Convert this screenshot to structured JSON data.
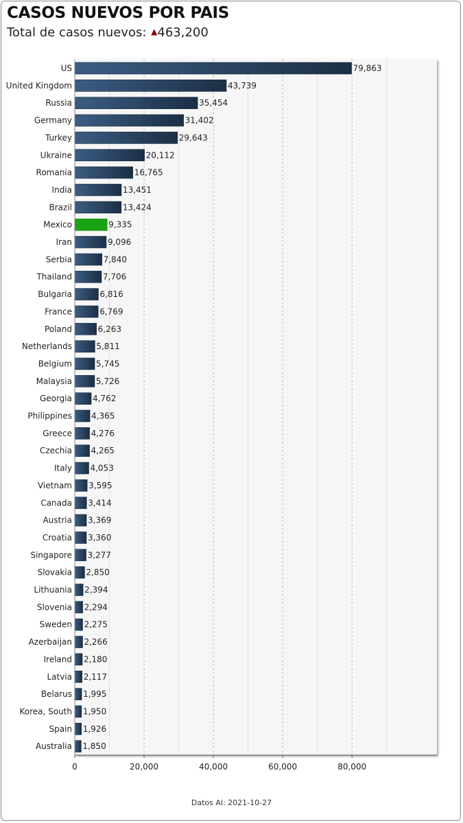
{
  "title": "CASOS NUEVOS POR PAIS",
  "subtitle_label": "Total de casos nuevos:",
  "subtitle_arrow": "▲",
  "subtitle_value": "463,200",
  "footer": "Datos Al: 2021-10-27",
  "colors": {
    "bar": "#2e4b6c",
    "bar_highlight": "#1aa314",
    "arrow": "#8b0000",
    "plot_bg": "#f6f6f6"
  },
  "chart_data": {
    "type": "bar",
    "orientation": "horizontal",
    "highlight": "Mexico",
    "categories": [
      "US",
      "United Kingdom",
      "Russia",
      "Germany",
      "Turkey",
      "Ukraine",
      "Romania",
      "India",
      "Brazil",
      "Mexico",
      "Iran",
      "Serbia",
      "Thailand",
      "Bulgaria",
      "France",
      "Poland",
      "Netherlands",
      "Belgium",
      "Malaysia",
      "Georgia",
      "Philippines",
      "Greece",
      "Czechia",
      "Italy",
      "Vietnam",
      "Canada",
      "Austria",
      "Croatia",
      "Singapore",
      "Slovakia",
      "Lithuania",
      "Slovenia",
      "Sweden",
      "Azerbaijan",
      "Ireland",
      "Latvia",
      "Belarus",
      "Korea, South",
      "Spain",
      "Australia"
    ],
    "values": [
      79863,
      43739,
      35454,
      31402,
      29643,
      20112,
      16765,
      13451,
      13424,
      9335,
      9096,
      7840,
      7706,
      6816,
      6769,
      6263,
      5811,
      5745,
      5726,
      4762,
      4365,
      4276,
      4265,
      4053,
      3595,
      3414,
      3369,
      3360,
      3277,
      2850,
      2394,
      2294,
      2275,
      2266,
      2180,
      2117,
      1995,
      1950,
      1926,
      1850
    ],
    "value_labels": [
      "79,863",
      "43,739",
      "35,454",
      "31,402",
      "29,643",
      "20,112",
      "16,765",
      "13,451",
      "13,424",
      "9,335",
      "9,096",
      "7,840",
      "7,706",
      "6,816",
      "6,769",
      "6,263",
      "5,811",
      "5,745",
      "5,726",
      "4,762",
      "4,365",
      "4,276",
      "4,265",
      "4,053",
      "3,595",
      "3,414",
      "3,369",
      "3,360",
      "3,277",
      "2,850",
      "2,394",
      "2,294",
      "2,275",
      "2,266",
      "2,180",
      "2,117",
      "1,995",
      "1,950",
      "1,926",
      "1,850"
    ],
    "x_ticks": [
      0,
      20000,
      40000,
      60000,
      80000
    ],
    "x_tick_labels": [
      "0",
      "20,000",
      "40,000",
      "60,000",
      "80,000"
    ],
    "xlim": [
      0,
      104500
    ],
    "grid": true
  }
}
